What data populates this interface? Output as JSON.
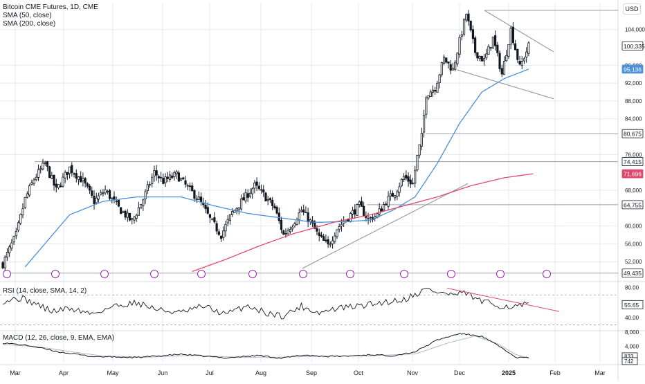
{
  "header": {
    "title": "Bitcoin CME Futures, 1D, CME",
    "sma50_label": "SMA (50, close)",
    "sma200_label": "SMA (200, close)",
    "currency": "USD"
  },
  "rsi_label": "RSI (14, close, SMA, 14, 2)",
  "macd_label": "MACD (12, 26, close, 9, EMA, EMA)",
  "colors": {
    "up": "#131722",
    "sma50": "#4a90d9",
    "sma200": "#e0476b",
    "grid": "#e6e8ee",
    "hline": "#9aa0ab",
    "trend": "#8a8f99",
    "rsi": "#131722",
    "rsi_trend": "#e0476b",
    "macd": "#131722",
    "signal": "#b3b8c0"
  },
  "chart_data": {
    "type": "candlestick",
    "title": "Bitcoin CME Futures, 1D, CME",
    "ylim": [
      48000,
      110000
    ],
    "y_ticks": [
      "104,000",
      "96,000",
      "92,000",
      "88,000",
      "84,000",
      "76,000",
      "68,000",
      "60,000",
      "56,000",
      "52,000"
    ],
    "x_ticks": [
      "Mar",
      "Apr",
      "May",
      "Jun",
      "Jul",
      "Aug",
      "Sep",
      "Oct",
      "Nov",
      "Dec",
      "2025",
      "Feb",
      "Mar"
    ],
    "price_labels": [
      {
        "text": "100,335",
        "value": 100335,
        "style": "dark"
      },
      {
        "text": "95,136",
        "value": 95136,
        "style": "sma50"
      },
      {
        "text": "80,675",
        "value": 80675,
        "style": "dark"
      },
      {
        "text": "74,415",
        "value": 74415,
        "style": "dark"
      },
      {
        "text": "71,696",
        "value": 71696,
        "style": "sma200"
      },
      {
        "text": "64,755",
        "value": 64755,
        "style": "dark"
      },
      {
        "text": "49,435",
        "value": 49435,
        "style": "dark"
      }
    ],
    "horizontal_levels": [
      108300,
      80675,
      74415,
      64755,
      49435
    ],
    "price_anchors": [
      [
        0,
        51500
      ],
      [
        6,
        58000
      ],
      [
        10,
        66000
      ],
      [
        14,
        70500
      ],
      [
        19,
        74000
      ],
      [
        24,
        68000
      ],
      [
        30,
        73000
      ],
      [
        36,
        70000
      ],
      [
        41,
        65500
      ],
      [
        46,
        68000
      ],
      [
        52,
        64000
      ],
      [
        58,
        61000
      ],
      [
        63,
        66000
      ],
      [
        68,
        72000
      ],
      [
        72,
        70000
      ],
      [
        78,
        71500
      ],
      [
        83,
        68500
      ],
      [
        88,
        66000
      ],
      [
        93,
        61500
      ],
      [
        98,
        58000
      ],
      [
        103,
        63000
      ],
      [
        108,
        66000
      ],
      [
        113,
        69000
      ],
      [
        117,
        67000
      ],
      [
        122,
        64000
      ],
      [
        126,
        58000
      ],
      [
        130,
        60500
      ],
      [
        134,
        63500
      ],
      [
        138,
        61000
      ],
      [
        142,
        57500
      ],
      [
        146,
        55500
      ],
      [
        150,
        59500
      ],
      [
        155,
        62000
      ],
      [
        160,
        64500
      ],
      [
        164,
        61500
      ],
      [
        168,
        62500
      ],
      [
        172,
        65500
      ],
      [
        176,
        67500
      ],
      [
        180,
        71000
      ],
      [
        184,
        69500
      ],
      [
        186,
        75500
      ],
      [
        188,
        80000
      ],
      [
        190,
        89500
      ],
      [
        194,
        91000
      ],
      [
        198,
        97500
      ],
      [
        202,
        95000
      ],
      [
        206,
        103500
      ],
      [
        208,
        107500
      ],
      [
        212,
        99000
      ],
      [
        216,
        97000
      ],
      [
        220,
        102000
      ],
      [
        224,
        94000
      ],
      [
        228,
        104000
      ],
      [
        232,
        95500
      ],
      [
        236,
        100335
      ]
    ],
    "candle_count": 237,
    "sma50": [
      [
        10,
        50800
      ],
      [
        30,
        62500
      ],
      [
        45,
        65500
      ],
      [
        60,
        66500
      ],
      [
        80,
        66500
      ],
      [
        95,
        64500
      ],
      [
        110,
        62800
      ],
      [
        125,
        61800
      ],
      [
        140,
        60800
      ],
      [
        155,
        61000
      ],
      [
        165,
        61300
      ],
      [
        175,
        63500
      ],
      [
        185,
        66500
      ],
      [
        195,
        74000
      ],
      [
        205,
        83000
      ],
      [
        215,
        90000
      ],
      [
        225,
        93000
      ],
      [
        236,
        95136
      ]
    ],
    "sma200": [
      [
        85,
        49800
      ],
      [
        100,
        52500
      ],
      [
        115,
        55500
      ],
      [
        130,
        58200
      ],
      [
        150,
        61000
      ],
      [
        165,
        62500
      ],
      [
        180,
        64500
      ],
      [
        195,
        66500
      ],
      [
        210,
        69000
      ],
      [
        225,
        70800
      ],
      [
        238,
        71696
      ]
    ],
    "rsi": {
      "ylim": [
        25,
        85
      ],
      "ticks": [
        "80.00",
        "40.00"
      ],
      "current": "55.65"
    },
    "macd": {
      "ticks": [
        "8,000",
        "4,000"
      ],
      "current_macd": "833",
      "current_signal": "742"
    }
  }
}
